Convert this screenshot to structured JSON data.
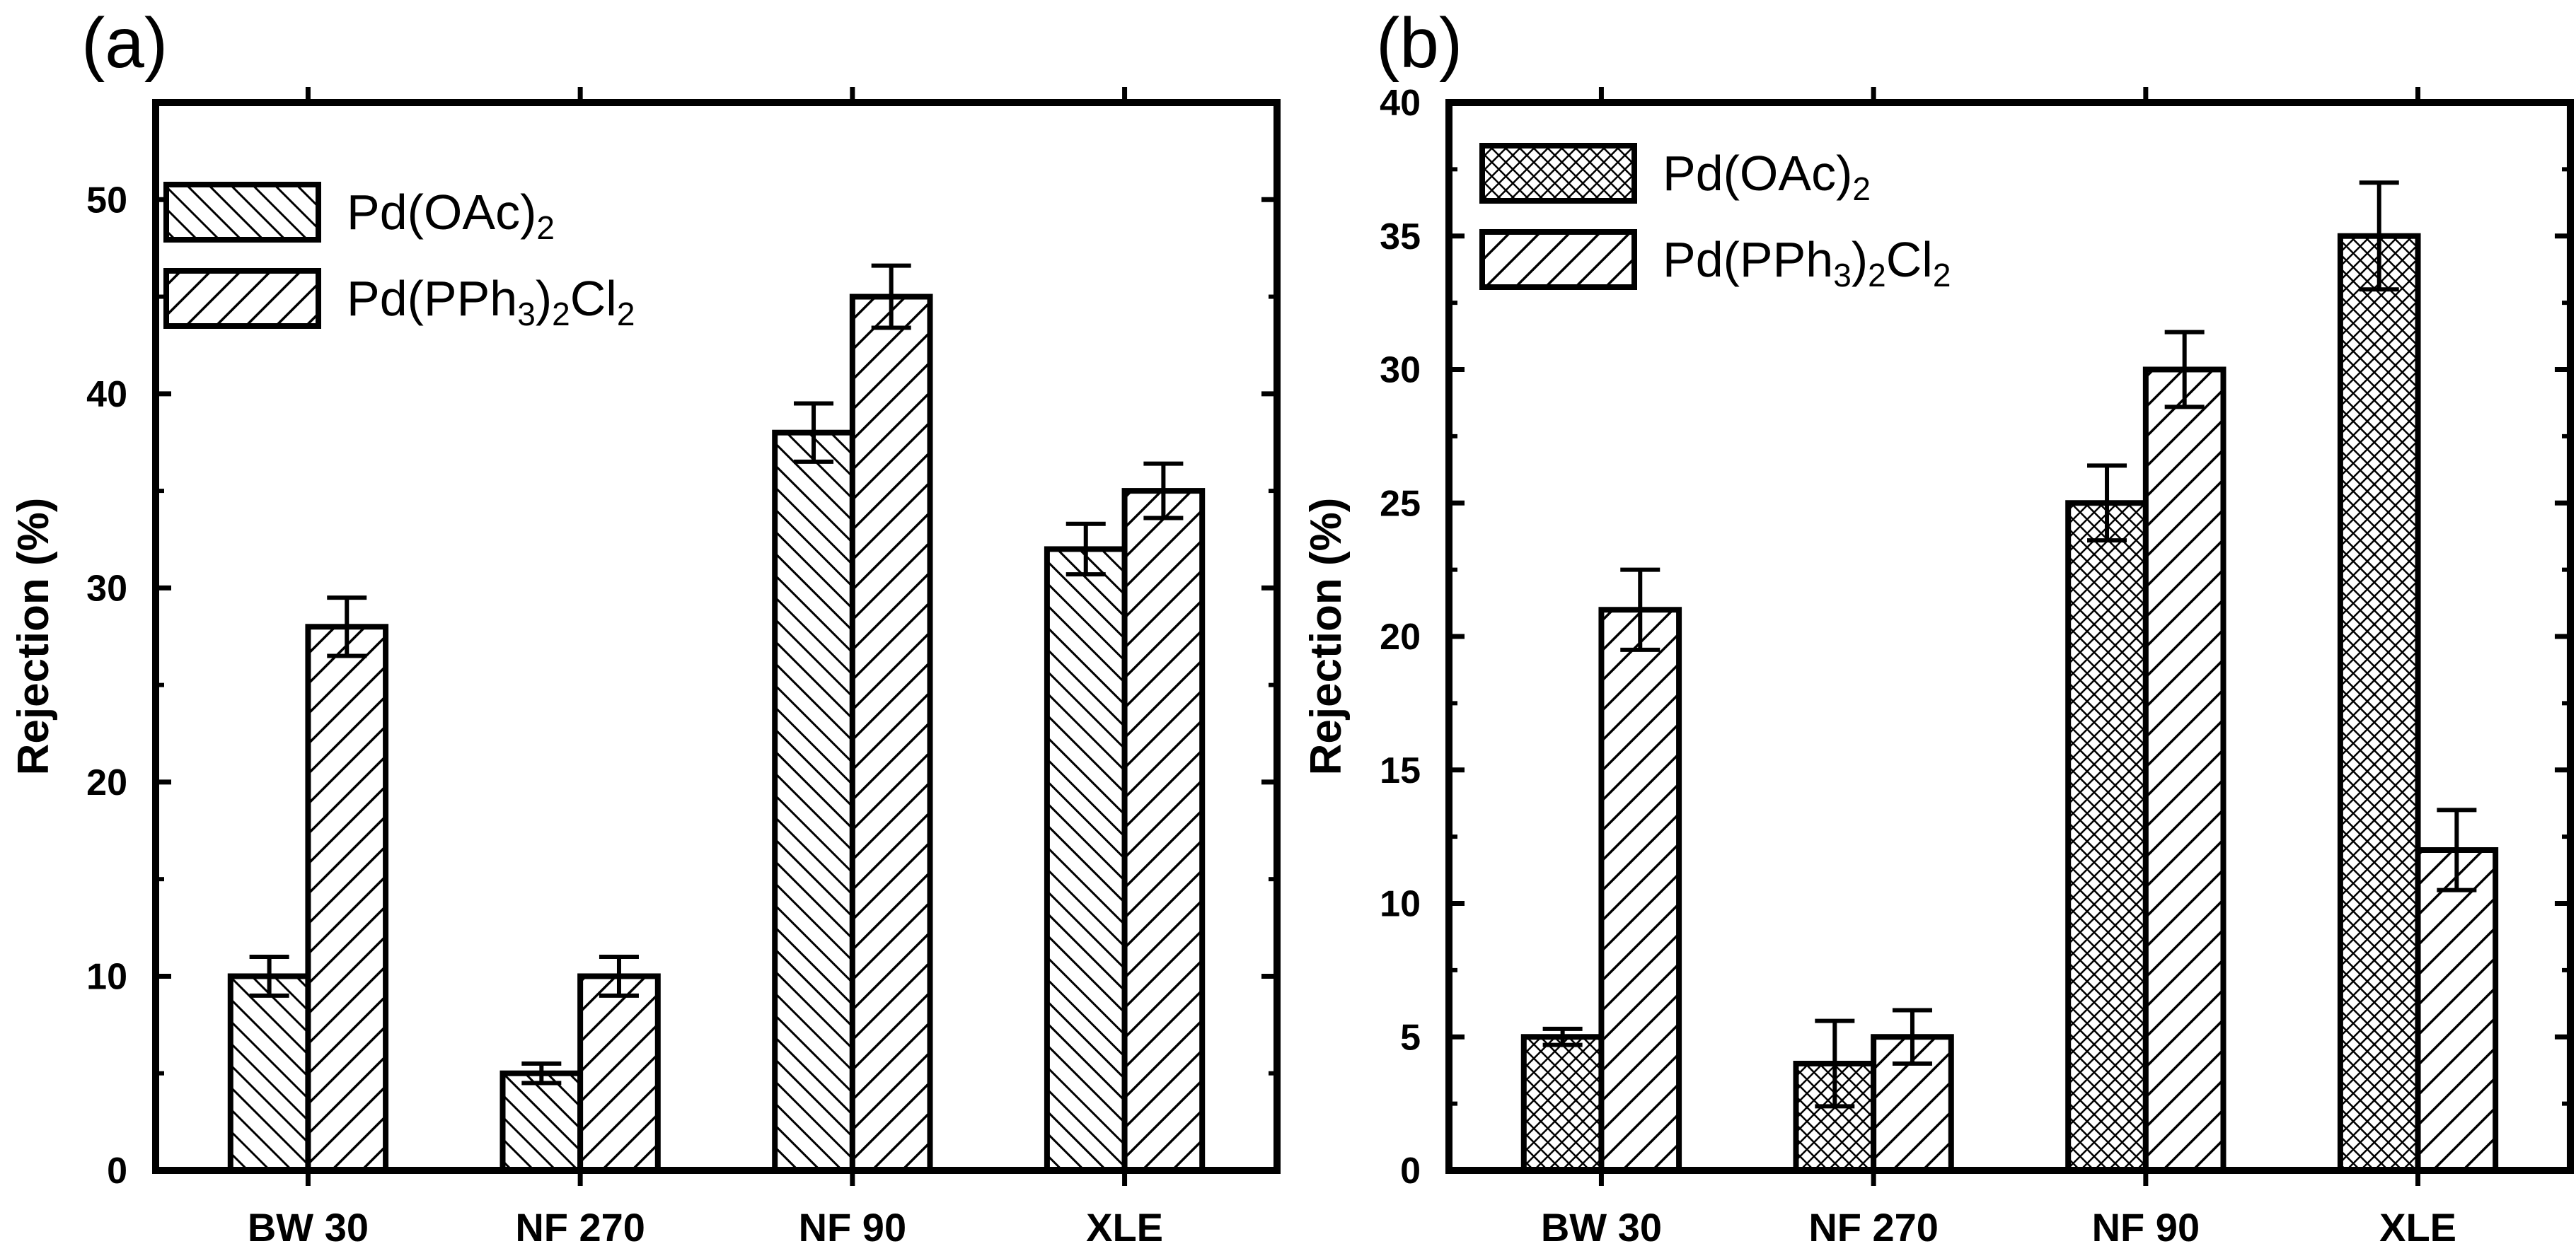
{
  "chart_data": [
    {
      "panel_label": "(a)",
      "type": "bar",
      "ylabel": "Rejection (%)",
      "xlabel": "",
      "categories": [
        "BW 30",
        "NF 270",
        "NF 90",
        "XLE"
      ],
      "ylim": [
        0,
        55
      ],
      "yticks": [
        "0",
        "10",
        "20",
        "30",
        "40",
        "50"
      ],
      "ytick_values": [
        0,
        10,
        20,
        30,
        40,
        50
      ],
      "legend_position": "top-left",
      "series": [
        {
          "name": "Pd(OAc)2",
          "legend_parts": [
            "Pd(OAc)",
            "2"
          ],
          "pattern": "back-diagonal hatch",
          "values": [
            10,
            5,
            38,
            32
          ],
          "errors": [
            1,
            0.5,
            1.5,
            1.3
          ]
        },
        {
          "name": "Pd(PPh3)2Cl2",
          "legend_parts": [
            "Pd(PPh",
            "3",
            ")",
            "2",
            "Cl",
            "2"
          ],
          "pattern": "forward-diagonal hatch",
          "values": [
            28,
            10,
            45,
            35
          ],
          "errors": [
            1.5,
            1,
            1.6,
            1.4
          ]
        }
      ]
    },
    {
      "panel_label": "(b)",
      "type": "bar",
      "ylabel": "Rejection (%)",
      "xlabel": "",
      "categories": [
        "BW 30",
        "NF 270",
        "NF 90",
        "XLE"
      ],
      "ylim": [
        0,
        40
      ],
      "yticks": [
        "0",
        "5",
        "10",
        "15",
        "20",
        "25",
        "30",
        "35",
        "40"
      ],
      "ytick_values": [
        0,
        5,
        10,
        15,
        20,
        25,
        30,
        35,
        40
      ],
      "legend_position": "top-left",
      "series": [
        {
          "name": "Pd(OAc)2",
          "legend_parts": [
            "Pd(OAc)",
            "2"
          ],
          "pattern": "cross-hatch",
          "values": [
            5,
            4,
            25,
            35
          ],
          "errors": [
            0.3,
            1.6,
            1.4,
            2
          ]
        },
        {
          "name": "Pd(PPh3)2Cl2",
          "legend_parts": [
            "Pd(PPh",
            "3",
            ")",
            "2",
            "Cl",
            "2"
          ],
          "pattern": "forward-diagonal hatch",
          "values": [
            21,
            5,
            30,
            12
          ],
          "errors": [
            1.5,
            1,
            1.4,
            1.5
          ]
        }
      ]
    }
  ]
}
